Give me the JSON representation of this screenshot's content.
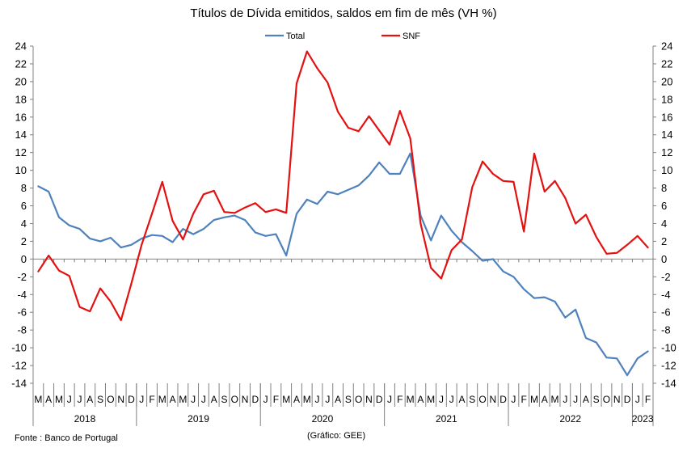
{
  "chart_data": {
    "type": "line",
    "title": "Títulos de Dívida emitidos, saldos em fim de mês  (VH %)",
    "source": "Fonte : Banco de Portugal",
    "credit": "(Gráfico: GEE)",
    "ylim": [
      -14,
      24
    ],
    "yticks": [
      -14,
      -12,
      -10,
      -8,
      -6,
      -4,
      -2,
      0,
      2,
      4,
      6,
      8,
      10,
      12,
      14,
      16,
      18,
      20,
      22,
      24
    ],
    "grid": false,
    "legend": "top-center",
    "x": [
      "M",
      "A",
      "M",
      "J",
      "J",
      "A",
      "S",
      "O",
      "N",
      "D",
      "J",
      "F",
      "M",
      "A",
      "M",
      "J",
      "J",
      "A",
      "S",
      "O",
      "N",
      "D",
      "J",
      "F",
      "M",
      "A",
      "M",
      "J",
      "J",
      "A",
      "S",
      "O",
      "N",
      "D",
      "J",
      "F",
      "M",
      "A",
      "M",
      "J",
      "J",
      "A",
      "S",
      "O",
      "N",
      "D",
      "J",
      "F",
      "M",
      "A",
      "M",
      "J",
      "J",
      "A",
      "S",
      "O",
      "N",
      "D",
      "J",
      "F"
    ],
    "years": [
      {
        "label": "2018",
        "start": 0,
        "end": 10
      },
      {
        "label": "2019",
        "start": 10,
        "end": 22
      },
      {
        "label": "2020",
        "start": 22,
        "end": 34
      },
      {
        "label": "2021",
        "start": 34,
        "end": 46
      },
      {
        "label": "2022",
        "start": 46,
        "end": 58
      },
      {
        "label": "2023",
        "start": 58,
        "end": 60
      }
    ],
    "series": [
      {
        "name": "Total",
        "color": "#4f81bd",
        "values": [
          8.2,
          7.6,
          4.7,
          3.8,
          3.4,
          2.3,
          2.0,
          2.4,
          1.3,
          1.6,
          2.3,
          2.7,
          2.6,
          1.9,
          3.4,
          2.8,
          3.4,
          4.4,
          4.7,
          4.9,
          4.4,
          3.0,
          2.6,
          2.8,
          0.4,
          5.1,
          6.7,
          6.2,
          7.6,
          7.3,
          7.8,
          8.3,
          9.4,
          10.9,
          9.6,
          9.6,
          11.9,
          4.9,
          2.1,
          4.9,
          3.2,
          1.9,
          0.9,
          -0.2,
          0.0,
          -1.4,
          -2.0,
          -3.4,
          -4.4,
          -4.3,
          -4.8,
          -6.6,
          -5.7,
          -8.9,
          -9.4,
          -11.1,
          -11.2,
          -13.1,
          -11.2,
          -10.4
        ]
      },
      {
        "name": "SNF",
        "color": "#e3110f",
        "values": [
          -1.4,
          0.4,
          -1.3,
          -1.9,
          -5.4,
          -5.9,
          -3.3,
          -4.8,
          -6.9,
          -2.8,
          1.6,
          5.1,
          8.7,
          4.3,
          2.2,
          5.1,
          7.3,
          7.7,
          5.3,
          5.2,
          5.8,
          6.3,
          5.3,
          5.6,
          5.2,
          19.8,
          23.4,
          21.5,
          19.9,
          16.6,
          14.8,
          14.4,
          16.1,
          14.5,
          12.9,
          16.7,
          13.6,
          4.0,
          -1.0,
          -2.2,
          1.0,
          2.2,
          8.1,
          11.0,
          9.6,
          8.8,
          8.7,
          3.1,
          11.9,
          7.6,
          8.8,
          6.9,
          4.0,
          5.0,
          2.5,
          0.6,
          0.7,
          1.6,
          2.6,
          1.3
        ]
      }
    ]
  }
}
